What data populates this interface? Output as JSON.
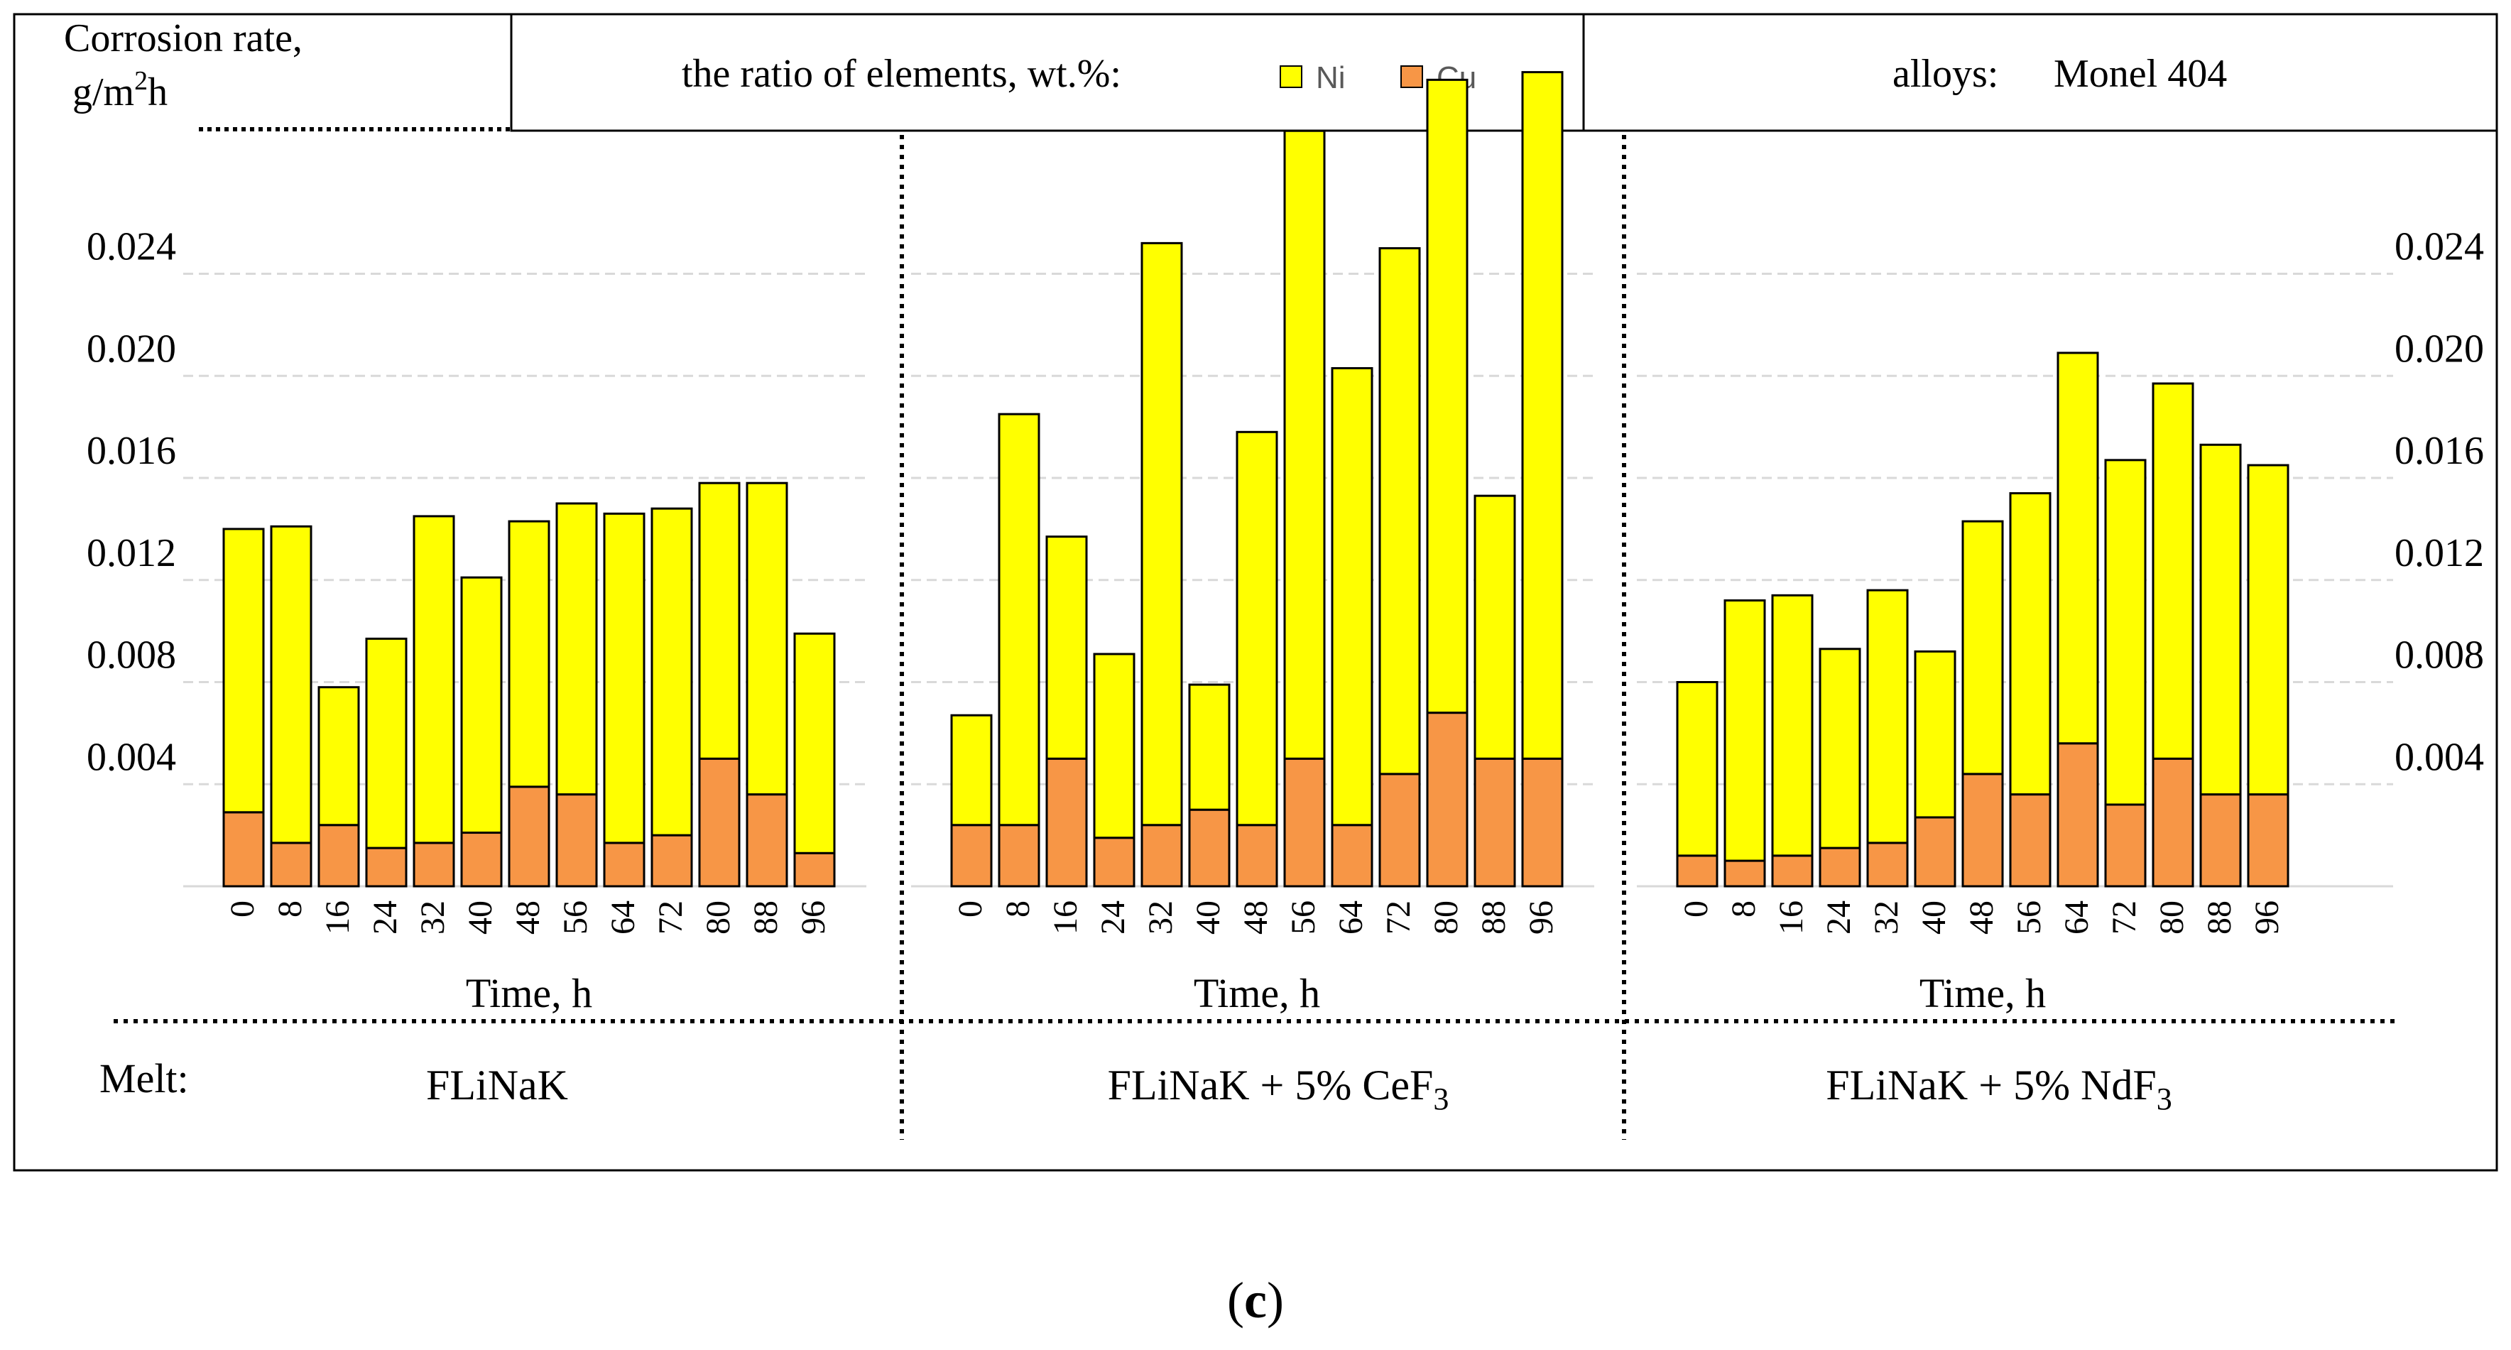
{
  "header": {
    "ylabel_line1": "Corrosion rate,",
    "ylabel_line2_pre": "g/m",
    "ylabel_sup": "2",
    "ylabel_line2_post": "h",
    "ratio_label": "the ratio of elements, wt.%:",
    "alloys_label": "alloys:",
    "alloy_name": "Monel 404"
  },
  "legend": [
    {
      "name": "Ni",
      "color": "#ffff00"
    },
    {
      "name": "Cu",
      "color": "#f79646"
    }
  ],
  "colors": {
    "ni": "#ffff00",
    "cu": "#f79646",
    "grid": "#d9d9d9",
    "stroke": "#000000"
  },
  "melt_label": "Melt:",
  "caption": {
    "open": "(",
    "letter": "c",
    "close": ")"
  },
  "chart_data": [
    {
      "type": "bar",
      "stacked": true,
      "title": "",
      "xlabel": "Time, h",
      "ylabel": "Corrosion rate, g/m2h",
      "melt_pre": "FLiNaK",
      "melt_sub": "",
      "ylim": [
        0,
        0.032
      ],
      "yticks": [
        "0.004",
        "0.008",
        "0.012",
        "0.016",
        "0.020",
        "0.024"
      ],
      "categories": [
        "0",
        "8",
        "16",
        "24",
        "32",
        "40",
        "48",
        "56",
        "64",
        "72",
        "80",
        "88",
        "96"
      ],
      "series": [
        {
          "name": "Cu",
          "values": [
            0.0029,
            0.0017,
            0.0024,
            0.0015,
            0.0017,
            0.0021,
            0.0039,
            0.0036,
            0.0017,
            0.002,
            0.005,
            0.0036,
            0.0013
          ]
        },
        {
          "name": "Ni",
          "values": [
            0.0111,
            0.0124,
            0.0054,
            0.0082,
            0.0128,
            0.01,
            0.0104,
            0.0114,
            0.0129,
            0.0128,
            0.0108,
            0.0122,
            0.0086
          ]
        }
      ]
    },
    {
      "type": "bar",
      "stacked": true,
      "title": "",
      "xlabel": "Time, h",
      "ylabel": "Corrosion rate, g/m2h",
      "melt_pre": "FLiNaK + 5% CeF",
      "melt_sub": "3",
      "ylim": [
        0,
        0.032
      ],
      "yticks": [],
      "categories": [
        "0",
        "8",
        "16",
        "24",
        "32",
        "40",
        "48",
        "56",
        "64",
        "72",
        "80",
        "88",
        "96"
      ],
      "series": [
        {
          "name": "Cu",
          "values": [
            0.0024,
            0.0024,
            0.005,
            0.0019,
            0.0024,
            0.003,
            0.0024,
            0.005,
            0.0024,
            0.0044,
            0.0068,
            0.005,
            0.005
          ]
        },
        {
          "name": "Ni",
          "values": [
            0.0043,
            0.0161,
            0.0087,
            0.0072,
            0.0228,
            0.0049,
            0.0154,
            0.0246,
            0.0179,
            0.0206,
            0.0248,
            0.0103,
            0.0269
          ]
        }
      ]
    },
    {
      "type": "bar",
      "stacked": true,
      "title": "",
      "xlabel": "Time, h",
      "ylabel": "Corrosion rate, g/m2h",
      "melt_pre": "FLiNaK + 5% NdF",
      "melt_sub": "3",
      "ylim": [
        0,
        0.032
      ],
      "yticks": [
        "0.004",
        "0.008",
        "0.012",
        "0.016",
        "0.020",
        "0.024"
      ],
      "categories": [
        "0",
        "8",
        "16",
        "24",
        "32",
        "40",
        "48",
        "56",
        "64",
        "72",
        "80",
        "88",
        "96"
      ],
      "series": [
        {
          "name": "Cu",
          "values": [
            0.0012,
            0.001,
            0.0012,
            0.0015,
            0.0017,
            0.0027,
            0.0044,
            0.0036,
            0.0056,
            0.0032,
            0.005,
            0.0036,
            0.0036
          ]
        },
        {
          "name": "Ni",
          "values": [
            0.0068,
            0.0102,
            0.0102,
            0.0078,
            0.0099,
            0.0065,
            0.0099,
            0.0118,
            0.0153,
            0.0135,
            0.0147,
            0.0137,
            0.0129
          ]
        }
      ]
    }
  ]
}
